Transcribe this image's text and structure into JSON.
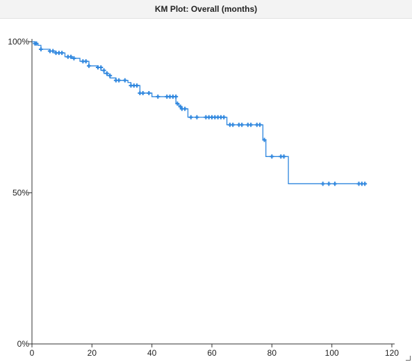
{
  "panel": {
    "title": "KM Plot: Overall (months)"
  },
  "colors": {
    "curve": "#2e86de",
    "axis": "#333333",
    "text": "#222222"
  },
  "chart_data": {
    "type": "line",
    "title": "KM Plot: Overall (months)",
    "xlabel": "",
    "ylabel": "",
    "xlim": [
      0,
      120
    ],
    "ylim": [
      0,
      100
    ],
    "x_ticks": [
      0,
      20,
      40,
      60,
      80,
      100,
      120
    ],
    "x_tick_labels": [
      "0",
      "20",
      "40",
      "60",
      "80",
      "100",
      "120"
    ],
    "y_ticks": [
      0,
      50,
      100
    ],
    "y_tick_labels": [
      "0%",
      "50%",
      "100%"
    ],
    "grid": false,
    "series": [
      {
        "step_curve": [
          [
            0,
            100
          ],
          [
            1,
            99.4
          ],
          [
            2,
            98.8
          ],
          [
            3,
            97.5
          ],
          [
            6,
            96.9
          ],
          [
            8,
            96.3
          ],
          [
            11,
            95.0
          ],
          [
            13,
            94.5
          ],
          [
            16,
            93.5
          ],
          [
            19,
            92.0
          ],
          [
            22,
            91.5
          ],
          [
            23,
            90.5
          ],
          [
            24,
            89.5
          ],
          [
            25,
            88.8
          ],
          [
            26,
            88.0
          ],
          [
            28,
            87.2
          ],
          [
            32,
            86.5
          ],
          [
            33,
            85.5
          ],
          [
            36,
            83.0
          ],
          [
            40,
            81.8
          ],
          [
            48,
            79.5
          ],
          [
            49,
            78.5
          ],
          [
            50,
            77.8
          ],
          [
            52,
            75.0
          ],
          [
            65,
            72.5
          ],
          [
            77,
            67.5
          ],
          [
            78,
            62.0
          ],
          [
            85.5,
            53.0
          ],
          [
            111,
            53.0
          ]
        ],
        "censored": [
          [
            1,
            99.4
          ],
          [
            1.5,
            99.4
          ],
          [
            3,
            97.5
          ],
          [
            6,
            96.9
          ],
          [
            7,
            96.9
          ],
          [
            8,
            96.3
          ],
          [
            9,
            96.3
          ],
          [
            10,
            96.3
          ],
          [
            12,
            95.0
          ],
          [
            13,
            95.0
          ],
          [
            14,
            94.5
          ],
          [
            17,
            93.5
          ],
          [
            18,
            93.5
          ],
          [
            19,
            92.0
          ],
          [
            22,
            91.5
          ],
          [
            23,
            91.5
          ],
          [
            24,
            90.5
          ],
          [
            25,
            89.5
          ],
          [
            26,
            88.8
          ],
          [
            28,
            87.2
          ],
          [
            29,
            87.2
          ],
          [
            31,
            87.2
          ],
          [
            33,
            85.5
          ],
          [
            34,
            85.5
          ],
          [
            35,
            85.5
          ],
          [
            36,
            83.0
          ],
          [
            37,
            83.0
          ],
          [
            39,
            83.0
          ],
          [
            42,
            81.8
          ],
          [
            45,
            81.8
          ],
          [
            46,
            81.8
          ],
          [
            47,
            81.8
          ],
          [
            48,
            81.8
          ],
          [
            48.5,
            79.5
          ],
          [
            49.5,
            78.5
          ],
          [
            50,
            77.8
          ],
          [
            51,
            77.8
          ],
          [
            53,
            75.0
          ],
          [
            55,
            75.0
          ],
          [
            58,
            75.0
          ],
          [
            59,
            75.0
          ],
          [
            60,
            75.0
          ],
          [
            61,
            75.0
          ],
          [
            62,
            75.0
          ],
          [
            63,
            75.0
          ],
          [
            64,
            75.0
          ],
          [
            66,
            72.5
          ],
          [
            67,
            72.5
          ],
          [
            69,
            72.5
          ],
          [
            70,
            72.5
          ],
          [
            72,
            72.5
          ],
          [
            73,
            72.5
          ],
          [
            75,
            72.5
          ],
          [
            76,
            72.5
          ],
          [
            77.5,
            67.5
          ],
          [
            80,
            62.0
          ],
          [
            83,
            62.0
          ],
          [
            84,
            62.0
          ],
          [
            97,
            53.0
          ],
          [
            99,
            53.0
          ],
          [
            101,
            53.0
          ],
          [
            109,
            53.0
          ],
          [
            110,
            53.0
          ],
          [
            111,
            53.0
          ]
        ]
      }
    ]
  }
}
